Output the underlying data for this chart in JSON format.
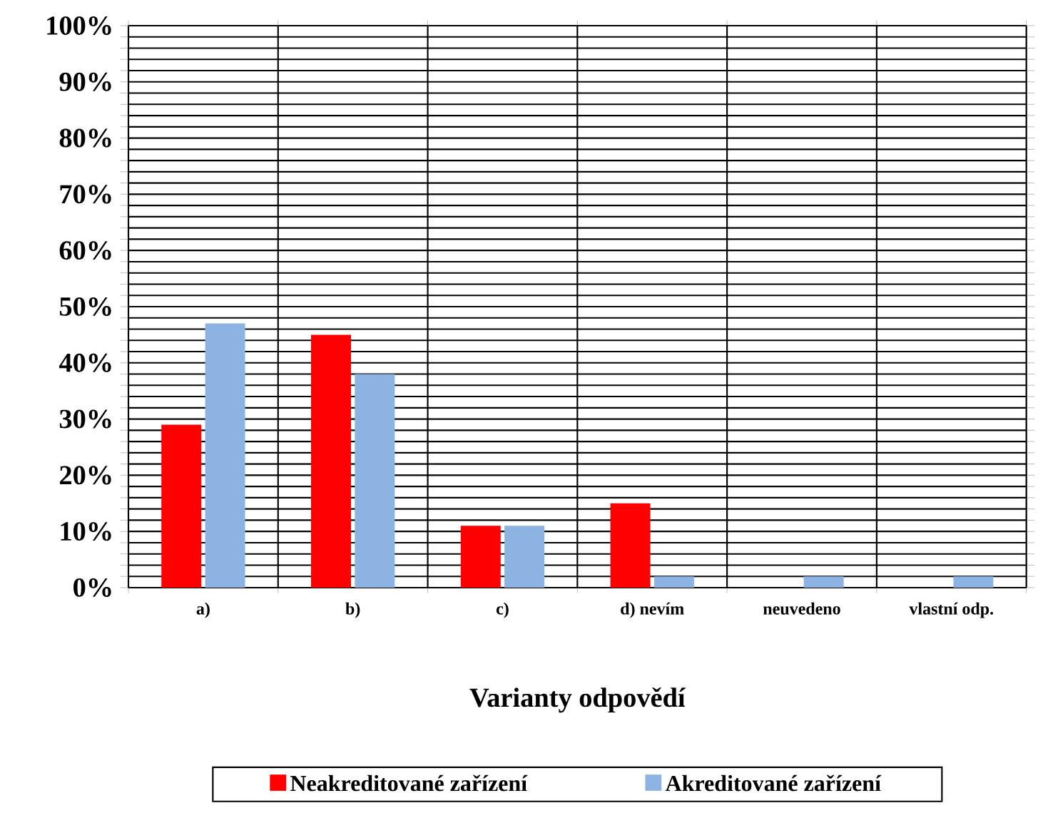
{
  "chart_data": {
    "type": "bar",
    "xlabel": "Varianty odpovědí",
    "categories": [
      "a)",
      "b)",
      "c)",
      "d) nevím",
      "neuvedeno",
      "vlastní odp."
    ],
    "series": [
      {
        "name": "Neakreditované zařízení",
        "color": "#ff0000",
        "values": [
          29,
          45,
          11,
          15,
          0,
          0
        ]
      },
      {
        "name": "Akreditované zařízení",
        "color": "#8db3e2",
        "values": [
          47,
          38,
          11,
          2,
          2,
          2
        ]
      }
    ],
    "ylim": [
      0,
      100
    ],
    "yticks": [
      {
        "value": 0,
        "label": "0%"
      },
      {
        "value": 2,
        "label": null
      },
      {
        "value": 4,
        "label": null
      },
      {
        "value": 6,
        "label": null
      },
      {
        "value": 8,
        "label": null
      },
      {
        "value": 10,
        "label": "10%"
      },
      {
        "value": 12,
        "label": null
      },
      {
        "value": 14,
        "label": null
      },
      {
        "value": 16,
        "label": null
      },
      {
        "value": 18,
        "label": null
      },
      {
        "value": 20,
        "label": "20%"
      },
      {
        "value": 22,
        "label": null
      },
      {
        "value": 24,
        "label": null
      },
      {
        "value": 26,
        "label": null
      },
      {
        "value": 28,
        "label": null
      },
      {
        "value": 30,
        "label": "30%"
      },
      {
        "value": 32,
        "label": null
      },
      {
        "value": 34,
        "label": null
      },
      {
        "value": 36,
        "label": null
      },
      {
        "value": 38,
        "label": null
      },
      {
        "value": 40,
        "label": "40%"
      },
      {
        "value": 42,
        "label": null
      },
      {
        "value": 44,
        "label": null
      },
      {
        "value": 46,
        "label": null
      },
      {
        "value": 48,
        "label": null
      },
      {
        "value": 50,
        "label": "50%"
      },
      {
        "value": 52,
        "label": null
      },
      {
        "value": 54,
        "label": null
      },
      {
        "value": 56,
        "label": null
      },
      {
        "value": 58,
        "label": null
      },
      {
        "value": 60,
        "label": "60%"
      },
      {
        "value": 62,
        "label": null
      },
      {
        "value": 64,
        "label": null
      },
      {
        "value": 66,
        "label": null
      },
      {
        "value": 68,
        "label": null
      },
      {
        "value": 70,
        "label": "70%"
      },
      {
        "value": 72,
        "label": null
      },
      {
        "value": 74,
        "label": null
      },
      {
        "value": 76,
        "label": null
      },
      {
        "value": 78,
        "label": null
      },
      {
        "value": 80,
        "label": "80%"
      },
      {
        "value": 82,
        "label": null
      },
      {
        "value": 84,
        "label": null
      },
      {
        "value": 86,
        "label": null
      },
      {
        "value": 88,
        "label": null
      },
      {
        "value": 90,
        "label": "90%"
      },
      {
        "value": 92,
        "label": null
      },
      {
        "value": 94,
        "label": null
      },
      {
        "value": 96,
        "label": null
      },
      {
        "value": 98,
        "label": null
      },
      {
        "value": 100,
        "label": "100%"
      }
    ],
    "grid": true,
    "legend": "bottom"
  }
}
